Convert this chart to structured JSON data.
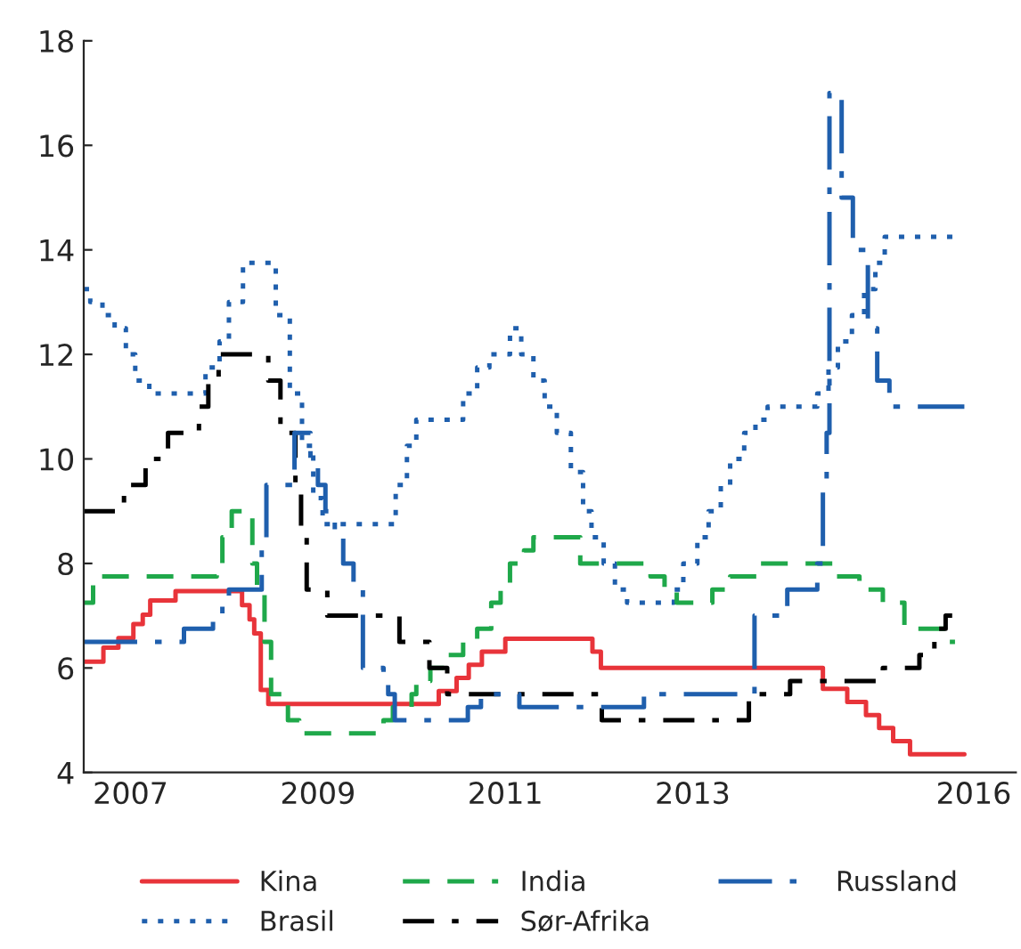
{
  "chart_data": {
    "type": "step",
    "xlim": [
      2007.0,
      2016.95
    ],
    "xticks": [
      {
        "value": 2007.5,
        "label": "2007"
      },
      {
        "value": 2009.5,
        "label": "2009"
      },
      {
        "value": 2011.5,
        "label": "2011"
      },
      {
        "value": 2013.5,
        "label": "2013"
      },
      {
        "value": 2016.5,
        "label": "2016"
      }
    ],
    "ylim": [
      4,
      18
    ],
    "yticks": [
      4,
      6,
      8,
      10,
      12,
      14,
      16,
      18
    ],
    "grid": false,
    "legend": "bottom",
    "marker": "none",
    "series": [
      {
        "name": "Kina",
        "color": "#e8343a",
        "line_style": "solid",
        "x": [
          2007.0,
          2007.21,
          2007.37,
          2007.53,
          2007.63,
          2007.71,
          2007.98,
          2008.69,
          2008.77,
          2008.82,
          2008.89,
          2008.97,
          2010.79,
          2010.98,
          2011.11,
          2011.25,
          2011.5,
          2012.43,
          2012.52,
          2014.89,
          2015.15,
          2015.35,
          2015.49,
          2015.64,
          2015.82,
          2016.4
        ],
        "values": [
          6.12,
          6.39,
          6.57,
          6.84,
          7.02,
          7.29,
          7.47,
          7.2,
          6.93,
          6.66,
          5.58,
          5.31,
          5.56,
          5.81,
          6.06,
          6.31,
          6.56,
          6.31,
          6.0,
          5.6,
          5.35,
          5.1,
          4.85,
          4.6,
          4.35,
          4.35
        ]
      },
      {
        "name": "Brasil",
        "color": "#1f5fad",
        "line_style": "dotted",
        "x": [
          2007.0,
          2007.07,
          2007.2,
          2007.33,
          2007.45,
          2007.55,
          2007.7,
          2008.3,
          2008.45,
          2008.55,
          2008.7,
          2009.05,
          2009.2,
          2009.33,
          2009.45,
          2009.55,
          2010.33,
          2010.45,
          2010.55,
          2011.05,
          2011.2,
          2011.33,
          2011.55,
          2011.67,
          2011.8,
          2011.92,
          2012.05,
          2012.2,
          2012.33,
          2012.42,
          2012.55,
          2012.67,
          2012.8,
          2013.3,
          2013.4,
          2013.55,
          2013.67,
          2013.8,
          2013.9,
          2014.05,
          2014.17,
          2014.3,
          2014.83,
          2014.95,
          2015.05,
          2015.2,
          2015.33,
          2015.45,
          2015.55,
          2016.3
        ],
        "values": [
          13.25,
          13.0,
          12.75,
          12.5,
          12.0,
          11.5,
          11.25,
          11.75,
          12.25,
          13.0,
          13.75,
          12.75,
          11.25,
          10.25,
          9.25,
          8.75,
          9.5,
          10.25,
          10.75,
          11.25,
          11.75,
          12.0,
          12.5,
          12.0,
          11.5,
          11.0,
          10.5,
          9.75,
          9.0,
          8.5,
          8.0,
          7.5,
          7.25,
          7.5,
          8.0,
          8.5,
          9.0,
          9.5,
          10.0,
          10.5,
          10.75,
          11.0,
          11.25,
          11.75,
          12.25,
          12.75,
          13.25,
          13.75,
          14.25,
          14.25
        ]
      },
      {
        "name": "India",
        "color": "#1fa84a",
        "line_style": "dashed",
        "x": [
          2007.0,
          2007.1,
          2008.42,
          2008.48,
          2008.58,
          2008.8,
          2008.85,
          2008.93,
          2009.0,
          2009.18,
          2009.3,
          2010.2,
          2010.3,
          2010.5,
          2010.55,
          2010.7,
          2010.85,
          2011.05,
          2011.2,
          2011.35,
          2011.45,
          2011.55,
          2011.7,
          2011.8,
          2012.3,
          2013.05,
          2013.2,
          2013.33,
          2013.71,
          2013.9,
          2014.22,
          2015.02,
          2015.28,
          2015.53,
          2015.76,
          2016.24,
          2016.3
        ],
        "values": [
          7.25,
          7.75,
          8.0,
          8.5,
          9.0,
          8.0,
          7.5,
          6.5,
          5.5,
          5.0,
          4.75,
          5.0,
          5.25,
          5.5,
          5.75,
          6.0,
          6.25,
          6.5,
          6.75,
          7.25,
          7.5,
          8.0,
          8.25,
          8.5,
          8.0,
          7.75,
          7.5,
          7.25,
          7.5,
          7.75,
          8.0,
          7.75,
          7.5,
          7.25,
          6.75,
          6.5,
          6.5
        ]
      },
      {
        "name": "Sør-Afrika",
        "color": "#000000",
        "line_style": "dashdot",
        "x": [
          2007.0,
          2007.43,
          2007.66,
          2007.9,
          2008.23,
          2008.33,
          2008.44,
          2008.97,
          2009.1,
          2009.26,
          2009.32,
          2009.38,
          2009.6,
          2010.37,
          2010.69,
          2010.88,
          2012.53,
          2014.1,
          2014.54,
          2015.53,
          2015.92,
          2016.08,
          2016.2,
          2016.27
        ],
        "values": [
          9.0,
          9.5,
          10.0,
          10.5,
          11.0,
          11.5,
          12.0,
          11.5,
          10.5,
          9.5,
          8.5,
          7.5,
          7.0,
          6.5,
          6.0,
          5.5,
          5.0,
          5.5,
          5.75,
          6.0,
          6.25,
          6.75,
          7.0,
          7.0
        ]
      },
      {
        "name": "Russland",
        "color": "#1f5fad",
        "line_style": "longdashdot",
        "x": [
          2007.0,
          2008.07,
          2008.38,
          2008.48,
          2008.55,
          2008.9,
          2008.95,
          2009.25,
          2009.42,
          2009.5,
          2009.58,
          2009.68,
          2009.77,
          2009.88,
          2009.98,
          2010.2,
          2010.25,
          2010.32,
          2011.1,
          2011.24,
          2011.65,
          2012.98,
          2014.16,
          2014.51,
          2014.83,
          2014.89,
          2014.93,
          2014.96,
          2015.09,
          2015.21,
          2015.37,
          2015.47,
          2015.6,
          2016.4
        ],
        "values": [
          6.5,
          6.75,
          7.0,
          7.25,
          7.5,
          8.5,
          9.5,
          10.5,
          10.0,
          9.5,
          9.0,
          8.5,
          8.0,
          7.5,
          6.0,
          5.75,
          5.5,
          5.0,
          5.25,
          5.5,
          5.25,
          5.5,
          7.0,
          7.5,
          8.0,
          9.5,
          10.5,
          17.0,
          15.0,
          14.0,
          12.5,
          11.5,
          11.0,
          11.0
        ]
      }
    ]
  }
}
